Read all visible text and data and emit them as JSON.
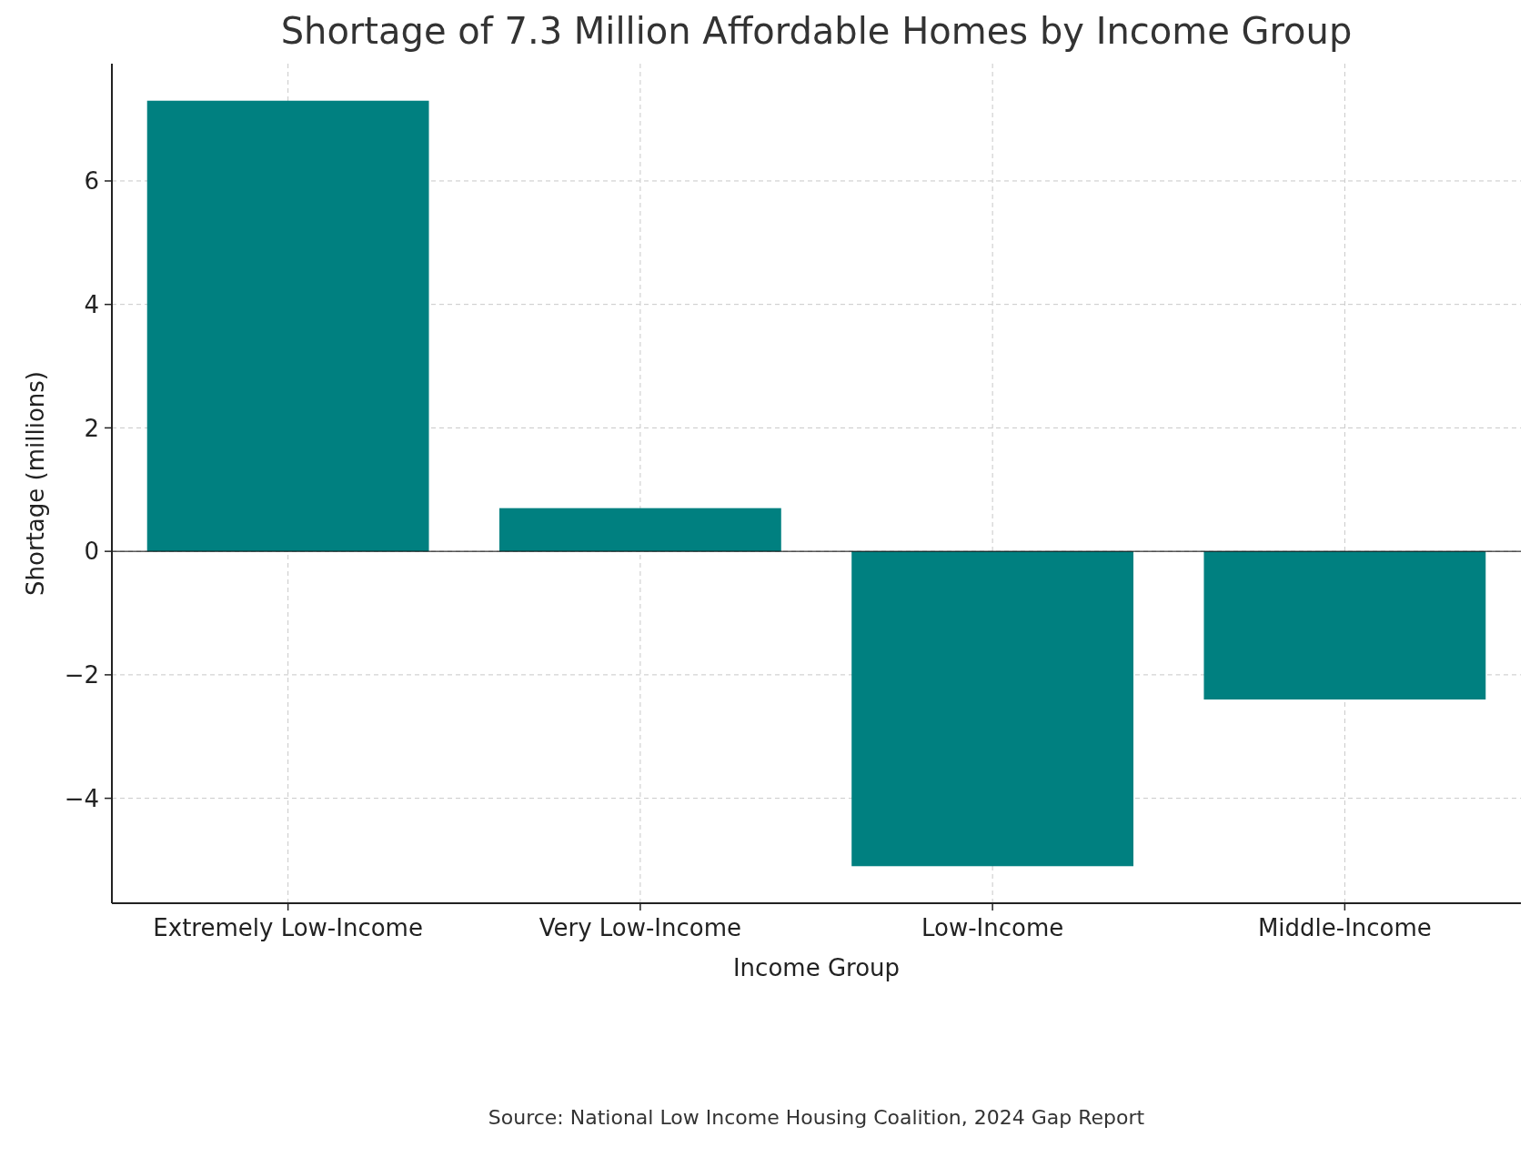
{
  "chart_data": {
    "type": "bar",
    "title": "Shortage of 7.3 Million Affordable Homes by Income Group",
    "xlabel": "Income Group",
    "ylabel": "Shortage (millions)",
    "categories": [
      "Extremely Low-Income",
      "Very Low-Income",
      "Low-Income",
      "Middle-Income"
    ],
    "values": [
      7.3,
      0.7,
      -5.1,
      -2.4
    ],
    "color": "#008080",
    "ylim": [
      -5.7,
      7.9
    ],
    "yticks": [
      {
        "value": -4,
        "label": "−4"
      },
      {
        "value": -2,
        "label": "−2"
      },
      0,
      2,
      4,
      6
    ],
    "grid": true,
    "ref_lines": [
      {
        "axis": "y",
        "value": 0,
        "color": "#000000"
      }
    ],
    "annotations": [
      "Source: National Low Income Housing Coalition, 2024 Gap Report"
    ]
  }
}
